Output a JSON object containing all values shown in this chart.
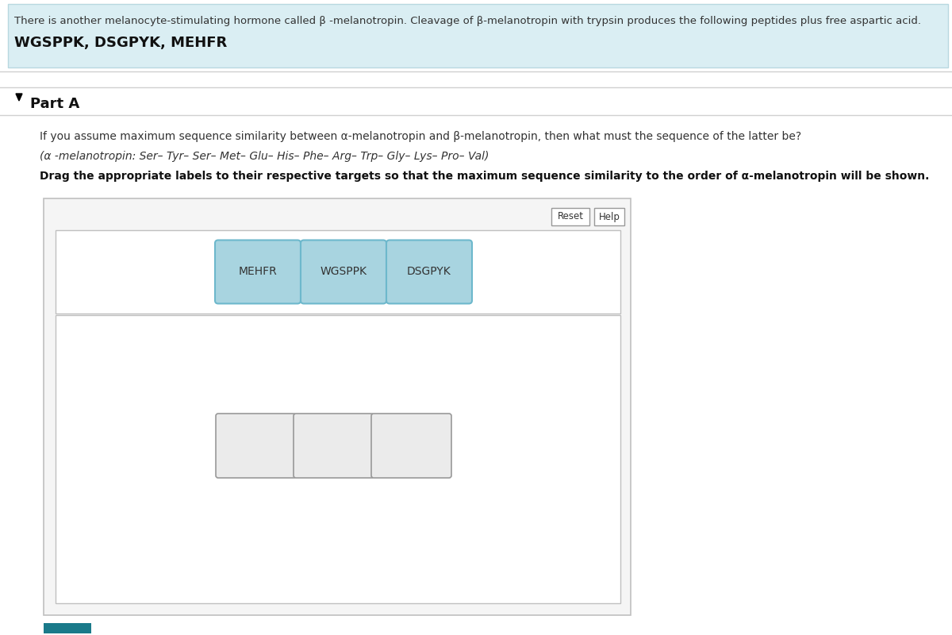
{
  "title_text1": "There is another melanocyte-stimulating hormone called β -melanotropin. Cleavage of β-melanotropin with trypsin produces the following peptides plus free aspartic acid.",
  "title_text2": "WGSPPK, DSGPYK, MEHFR",
  "title_bg": "#daeef3",
  "title_border": "#b8d8e0",
  "part_a_label": "Part A",
  "question_text": "If you assume maximum sequence similarity between α-melanotropin and β-melanotropin, then what must the sequence of the latter be?",
  "alpha_sequence": "(α -melanotropin: Ser– Tyr– Ser– Met– Glu– His– Phe– Arg– Trp– Gly– Lys– Pro– Val)",
  "drag_instruction": "Drag the appropriate labels to their respective targets so that the maximum sequence similarity to the order of α-melanotropin will be shown.",
  "peptides": [
    "MEHFR",
    "WGSPPK",
    "DSGPYK"
  ],
  "peptide_color": "#a8d4e0",
  "peptide_border": "#6db8cc",
  "empty_box_color": "#ebebeb",
  "empty_box_border": "#999999",
  "reset_label": "Reset",
  "help_label": "Help",
  "outer_box_border": "#c0c0c0",
  "outer_box_bg": "#f5f5f5",
  "inner_box_border": "#c0c0c0",
  "inner_box_bg": "#ffffff",
  "page_bg": "#ffffff",
  "teal_bar_color": "#1a7a8a"
}
